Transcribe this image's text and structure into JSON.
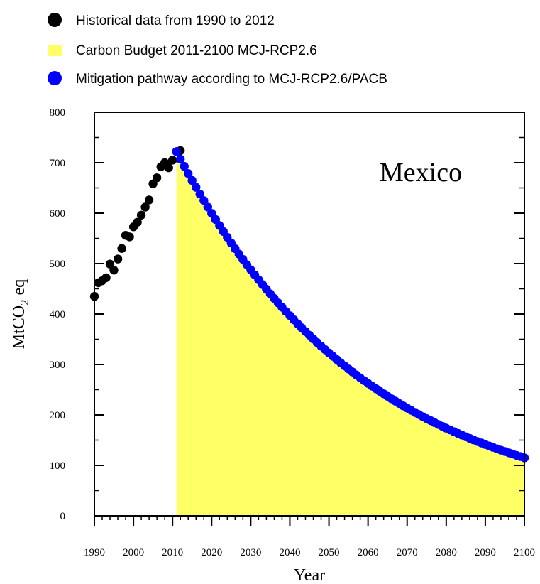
{
  "chart_data": {
    "type": "scatter",
    "annotation": "Mexico",
    "xlabel": "Year",
    "ylabel": {
      "main": "MtCO",
      "sub": "2",
      "suffix": " eq"
    },
    "xlim": [
      1990,
      2100
    ],
    "ylim": [
      0,
      800
    ],
    "xticks": [
      1990,
      2000,
      2010,
      2020,
      2030,
      2040,
      2050,
      2060,
      2070,
      2080,
      2090,
      2100
    ],
    "yticks": [
      0,
      100,
      200,
      300,
      400,
      500,
      600,
      700,
      800
    ],
    "grid": false,
    "legend_position": "top",
    "legend": [
      {
        "label": "Historical data from 1990 to 2012",
        "marker": "circle",
        "color": "#000000"
      },
      {
        "label": "Carbon Budget 2011-2100 MCJ-RCP2.6",
        "marker": "square",
        "color": "#ffff66"
      },
      {
        "label": "Mitigation pathway according to MCJ-RCP2.6/PACB",
        "marker": "circle",
        "color": "#0000ff"
      }
    ],
    "series": [
      {
        "name": "Historical data from 1990 to 2012",
        "color": "#000000",
        "x": [
          1990,
          1991,
          1992,
          1993,
          1994,
          1995,
          1996,
          1997,
          1998,
          1999,
          2000,
          2001,
          2002,
          2003,
          2004,
          2005,
          2006,
          2007,
          2008,
          2009,
          2010,
          2011,
          2012
        ],
        "y": [
          435,
          462,
          466,
          472,
          499,
          487,
          509,
          530,
          556,
          553,
          573,
          582,
          596,
          612,
          626,
          658,
          670,
          692,
          700,
          690,
          705,
          722,
          724
        ]
      },
      {
        "name": "Mitigation pathway according to MCJ-RCP2.6/PACB",
        "color": "#0000ff",
        "x_start": 2011,
        "x_end": 2100,
        "y_start": 722,
        "y_end": 115,
        "curve": "exponential decay"
      }
    ],
    "area": {
      "name": "Carbon Budget 2011-2100 MCJ-RCP2.6",
      "color": "#ffff66",
      "follows_series": "Mitigation pathway according to MCJ-RCP2.6/PACB"
    }
  }
}
